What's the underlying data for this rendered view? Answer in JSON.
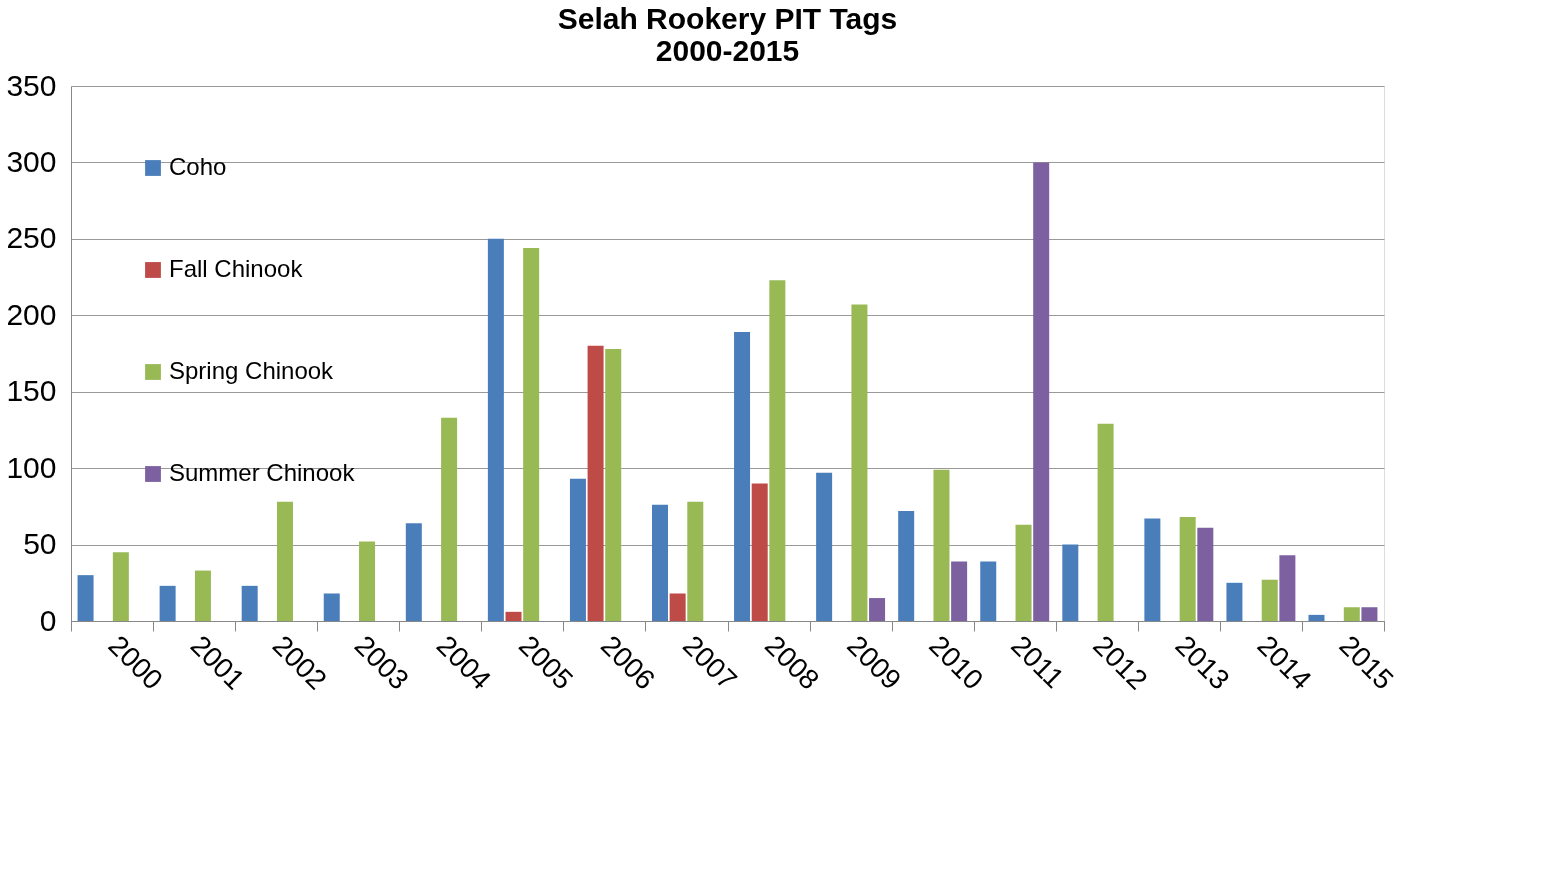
{
  "chart_data": {
    "type": "bar",
    "title": [
      "Selah Rookery PIT Tags",
      "2000-2015"
    ],
    "categories": [
      "2000",
      "2001",
      "2002",
      "2003",
      "2004",
      "2005",
      "2006",
      "2007",
      "2008",
      "2009",
      "2010",
      "2011",
      "2012",
      "2013",
      "2014",
      "2015"
    ],
    "series": [
      {
        "name": "Coho",
        "color": "#4a7ebb",
        "values": [
          30,
          23,
          23,
          18,
          64,
          250,
          93,
          76,
          189,
          97,
          72,
          39,
          50,
          67,
          25,
          4
        ]
      },
      {
        "name": "Fall Chinook",
        "color": "#be4b48",
        "values": [
          null,
          null,
          null,
          null,
          null,
          6,
          180,
          18,
          90,
          null,
          null,
          null,
          null,
          null,
          null,
          null
        ]
      },
      {
        "name": "Spring Chinook",
        "color": "#98b954",
        "values": [
          45,
          33,
          78,
          52,
          133,
          244,
          178,
          78,
          223,
          207,
          99,
          63,
          129,
          68,
          27,
          9
        ]
      },
      {
        "name": "Summer Chinook",
        "color": "#7d60a0",
        "values": [
          null,
          null,
          null,
          null,
          null,
          null,
          null,
          null,
          null,
          15,
          39,
          300,
          null,
          61,
          43,
          9
        ]
      }
    ],
    "ylim": [
      0,
      350
    ],
    "yticks": [
      0,
      50,
      100,
      150,
      200,
      250,
      300,
      350
    ],
    "grid": "y",
    "legend": "top left"
  }
}
